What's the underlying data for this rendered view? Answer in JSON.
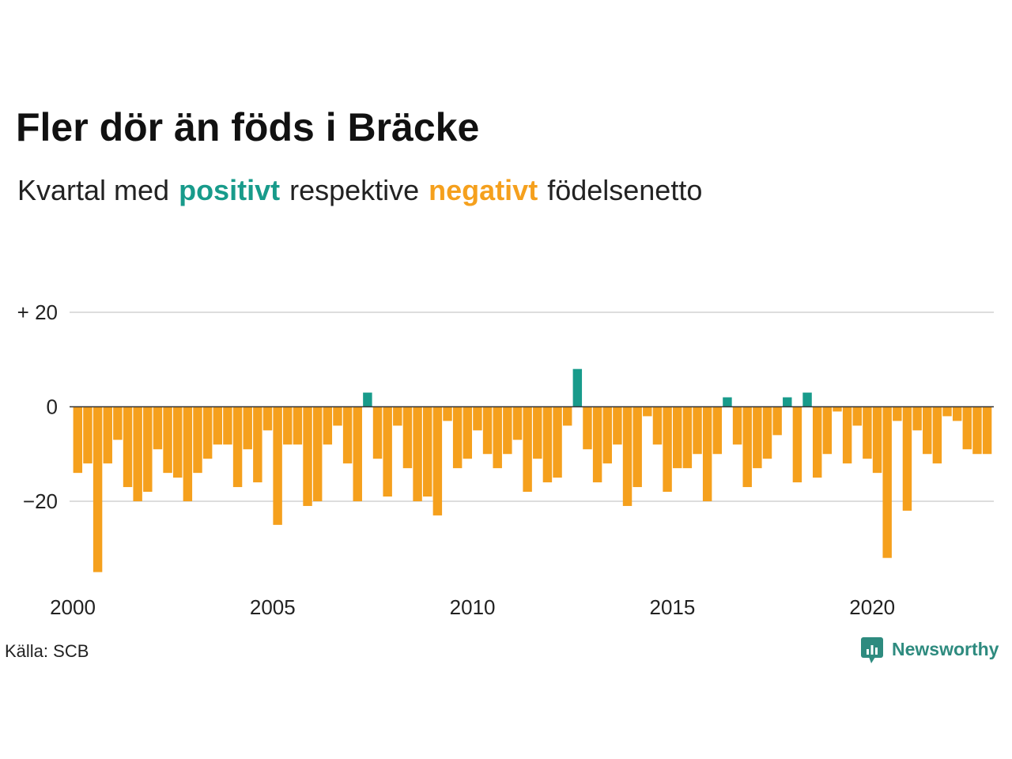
{
  "colors": {
    "positive": "#189b8b",
    "negative": "#f5a01d",
    "brand": "#2e8b7f",
    "grid": "#dddddd",
    "zero_line": "#333333"
  },
  "chart_data": {
    "type": "bar",
    "title": "Fler dör än föds i Bräcke",
    "subtitle": {
      "before": "Kvartal med",
      "positive": "positivt",
      "middle": "respektive",
      "negative": "negativt",
      "after": "födelsenetto"
    },
    "xlim": [
      "2000-01-01",
      "2023-01-01"
    ],
    "ylim": [
      -35,
      20
    ],
    "x_ticks": [
      "2000",
      "2005",
      "2010",
      "2015",
      "2020"
    ],
    "y_ticks": [
      {
        "value": 20,
        "label": "+ 20"
      },
      {
        "value": 0,
        "label": "0"
      },
      {
        "value": -20,
        "label": "−20"
      }
    ],
    "grid": true,
    "x": [
      "2000-01-01",
      "2000-04-01",
      "2000-07-01",
      "2000-10-01",
      "2001-01-01",
      "2001-04-01",
      "2001-07-01",
      "2001-10-01",
      "2002-01-01",
      "2002-04-01",
      "2002-07-01",
      "2002-10-01",
      "2003-01-01",
      "2003-04-01",
      "2003-07-01",
      "2003-10-01",
      "2004-01-01",
      "2004-04-01",
      "2004-07-01",
      "2004-10-01",
      "2005-01-01",
      "2005-04-01",
      "2005-07-01",
      "2005-10-01",
      "2006-01-01",
      "2006-04-01",
      "2006-07-01",
      "2006-10-01",
      "2007-01-01",
      "2007-04-01",
      "2007-07-01",
      "2007-10-01",
      "2008-01-01",
      "2008-04-01",
      "2008-07-01",
      "2008-10-01",
      "2009-01-01",
      "2009-04-01",
      "2009-07-01",
      "2009-10-01",
      "2010-01-01",
      "2010-04-01",
      "2010-07-01",
      "2010-10-01",
      "2011-01-01",
      "2011-04-01",
      "2011-07-01",
      "2011-10-01",
      "2012-01-01",
      "2012-04-01",
      "2012-07-01",
      "2012-10-01",
      "2013-01-01",
      "2013-04-01",
      "2013-07-01",
      "2013-10-01",
      "2014-01-01",
      "2014-04-01",
      "2014-07-01",
      "2014-10-01",
      "2015-01-01",
      "2015-04-01",
      "2015-07-01",
      "2015-10-01",
      "2016-01-01",
      "2016-04-01",
      "2016-07-01",
      "2016-10-01",
      "2017-01-01",
      "2017-04-01",
      "2017-07-01",
      "2017-10-01",
      "2018-01-01",
      "2018-04-01",
      "2018-07-01",
      "2018-10-01",
      "2019-01-01",
      "2019-04-01",
      "2019-07-01",
      "2019-10-01",
      "2020-01-01",
      "2020-04-01",
      "2020-07-01",
      "2020-10-01",
      "2021-01-01",
      "2021-04-01",
      "2021-07-01",
      "2021-10-01",
      "2022-01-01",
      "2022-04-01",
      "2022-07-01",
      "2022-10-01"
    ],
    "values": [
      -14,
      -12,
      -35,
      -12,
      -7,
      -17,
      -20,
      -18,
      -9,
      -14,
      -15,
      -20,
      -14,
      -11,
      -8,
      -8,
      -17,
      -9,
      -16,
      -5,
      -25,
      -8,
      -8,
      -21,
      -20,
      -8,
      -4,
      -12,
      -20,
      3,
      -11,
      -19,
      -4,
      -13,
      -20,
      -19,
      -23,
      -3,
      -13,
      -11,
      -5,
      -10,
      -13,
      -10,
      -7,
      -18,
      -11,
      -16,
      -15,
      -4,
      8,
      -9,
      -16,
      -12,
      -8,
      -21,
      -17,
      -2,
      -8,
      -18,
      -13,
      -13,
      -10,
      -20,
      -10,
      2,
      -8,
      -17,
      -13,
      -11,
      -6,
      2,
      -16,
      3,
      -15,
      -10,
      -1,
      -12,
      -4,
      -11,
      -14,
      -32,
      -3,
      -22,
      -5,
      -10,
      -12,
      -2,
      -3,
      -9,
      -10,
      -10
    ]
  },
  "source": "Källa: SCB",
  "brand": {
    "name": "Newsworthy",
    "icon": "newsworthy-logo-icon"
  }
}
